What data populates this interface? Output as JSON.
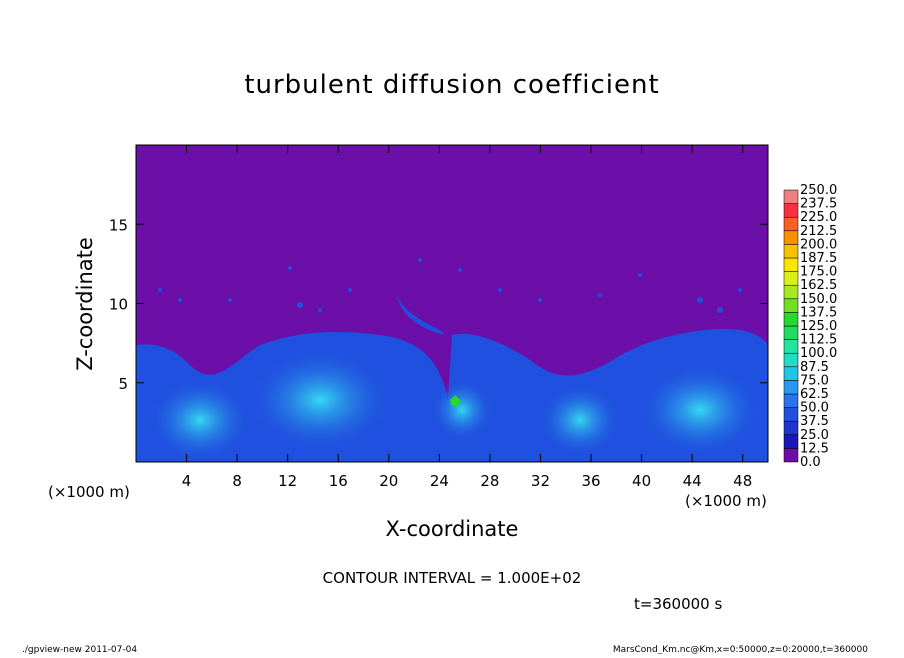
{
  "chart_data": {
    "type": "contour",
    "title": "turbulent diffusion coefficient",
    "x_label": "X-coordinate",
    "y_label": "Z-coordinate",
    "x_unit": "(×1000 m)",
    "x_unit_right": "(×1000 m)",
    "xlim": [
      0,
      50
    ],
    "xticks": [
      4,
      8,
      12,
      16,
      20,
      24,
      28,
      32,
      36,
      40,
      44,
      48
    ],
    "ylim": [
      0,
      20
    ],
    "yticks": [
      5,
      10,
      15
    ],
    "contour_interval": "CONTOUR INTERVAL = 1.000E+02",
    "time": "t=360000 s",
    "footer_left": "./gpview-new  2011-07-04",
    "footer_right": "MarsCond_Km.nc@Km,x=0:50000,z=0:20000,t=360000",
    "colorbar": {
      "levels": [
        {
          "value": 0,
          "label": "0.0"
        },
        12.5,
        {
          "value": 25,
          "label": "25.0"
        },
        37.5,
        {
          "value": 50,
          "label": "50.0"
        },
        62.5,
        {
          "value": 75,
          "label": "75.0"
        },
        87.5,
        {
          "value": 100,
          "label": "100.0"
        },
        112.5,
        {
          "value": 125,
          "label": "125.0"
        },
        137.5,
        {
          "value": 150,
          "label": "150.0"
        },
        162.5,
        {
          "value": 175,
          "label": "175.0"
        },
        187.5,
        {
          "value": 200,
          "label": "200.0"
        },
        212.5,
        {
          "value": 225,
          "label": "225.0"
        },
        237.5,
        {
          "value": 250,
          "label": "250.0"
        }
      ],
      "colors": [
        "#6c0fa8",
        "#1a18b8",
        "#1f35d0",
        "#2050e0",
        "#2874ee",
        "#2a98f0",
        "#1fc4e8",
        "#20dcc8",
        "#22e4a0",
        "#20dc60",
        "#28d830",
        "#70e020",
        "#a8e820",
        "#d8f018",
        "#f8e800",
        "#f8c000",
        "#f89000",
        "#f86020",
        "#f83040",
        "#f08080"
      ]
    }
  }
}
